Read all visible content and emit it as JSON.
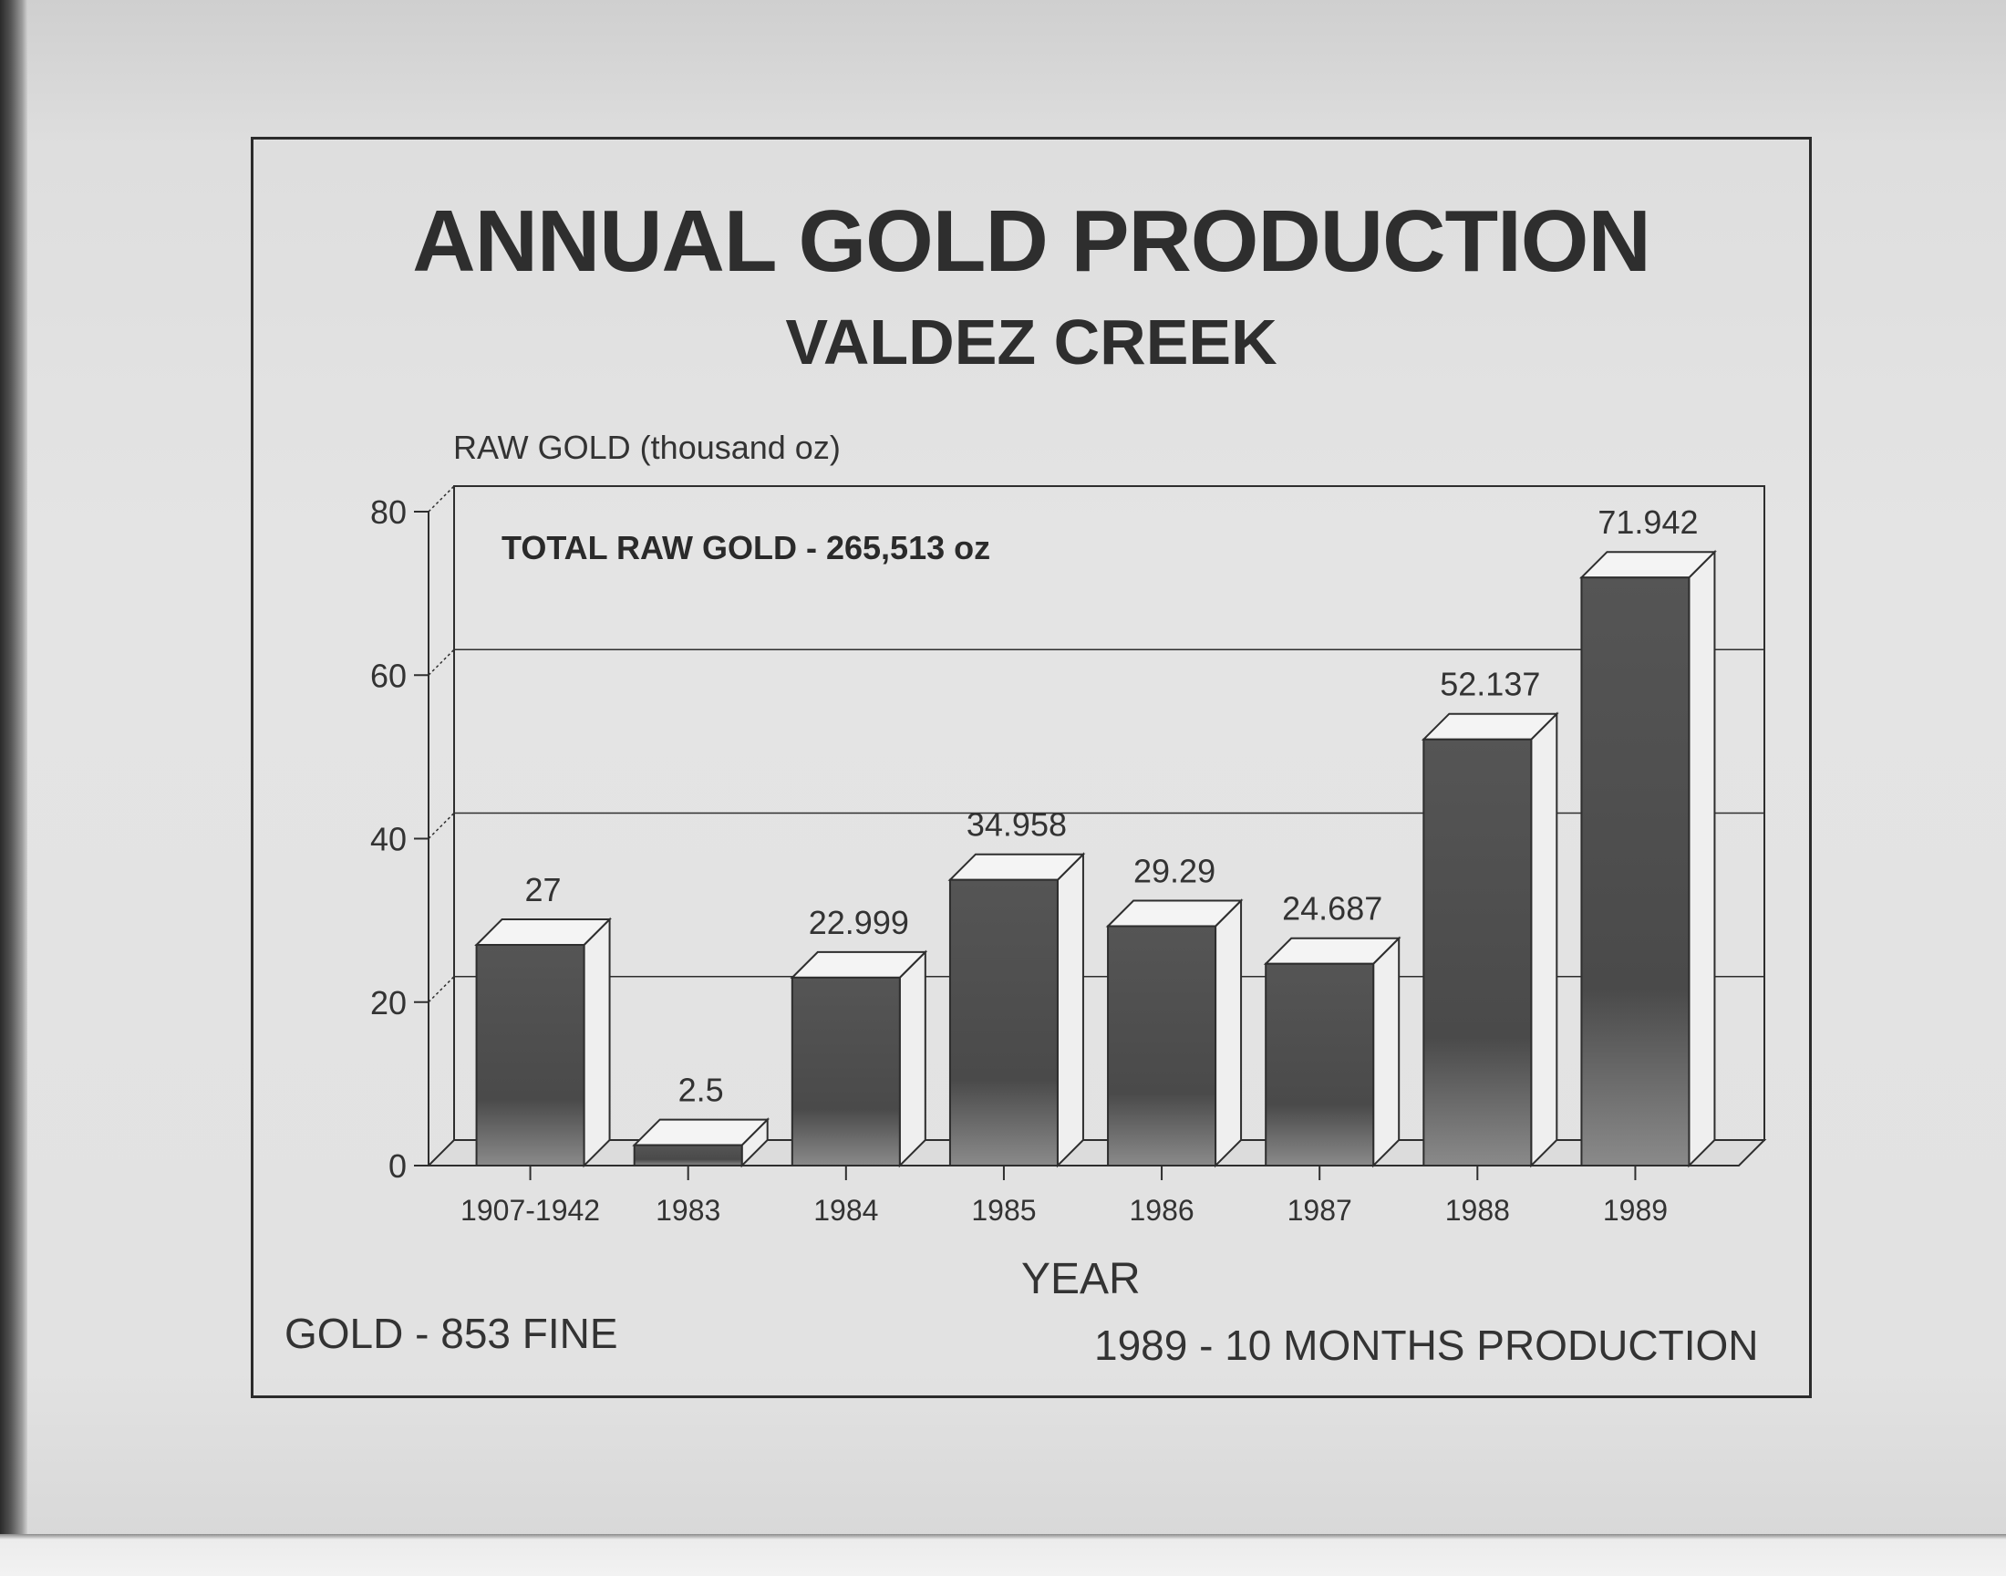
{
  "chart_data": {
    "type": "bar",
    "title": "ANNUAL GOLD PRODUCTION",
    "subtitle": "VALDEZ CREEK",
    "ylabel": "RAW GOLD (thousand oz)",
    "xlabel": "YEAR",
    "ylim": [
      0,
      80
    ],
    "yticks": [
      "0",
      "20",
      "40",
      "60",
      "80"
    ],
    "categories": [
      "1907-1942",
      "1983",
      "1984",
      "1985",
      "1986",
      "1987",
      "1988",
      "1989"
    ],
    "values": [
      27,
      2.5,
      22.999,
      34.958,
      29.29,
      24.687,
      52.137,
      71.942
    ],
    "value_labels": [
      "27",
      "2.5",
      "22.999",
      "34.958",
      "29.29",
      "24.687",
      "52.137",
      "71.942"
    ],
    "annotation": "TOTAL RAW GOLD - 265,513 oz",
    "grid": true,
    "style": "3d"
  },
  "notes": {
    "left": "GOLD - 853 FINE",
    "right": "1989 - 10 MONTHS PRODUCTION"
  },
  "colors": {
    "bar_top": "#555555",
    "bar_bottom": "#8a8a8a",
    "ink": "#2e2e2e"
  }
}
